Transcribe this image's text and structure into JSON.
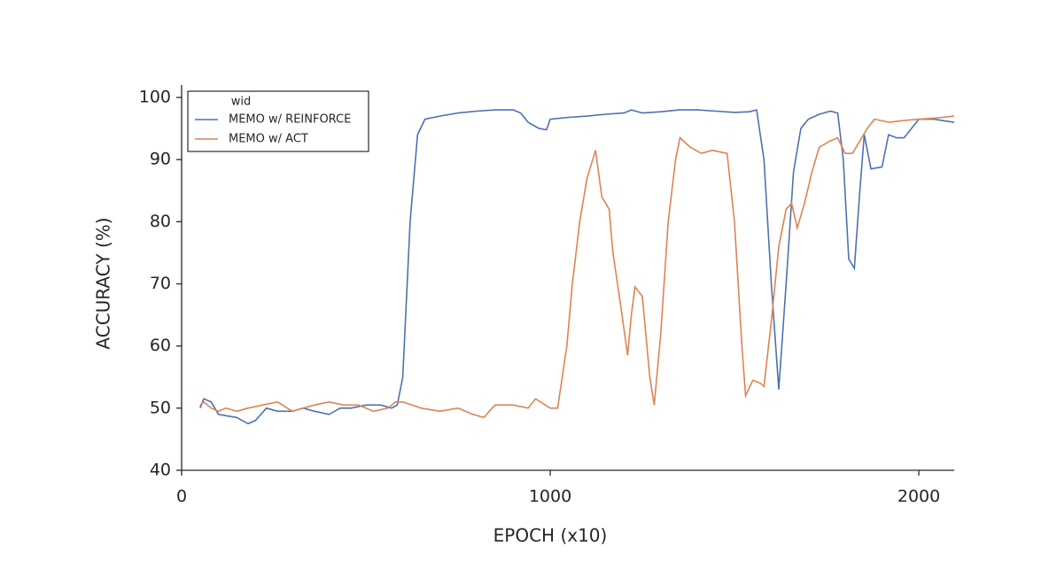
{
  "chart_data": {
    "type": "line",
    "xlabel": "EPOCH (x10)",
    "ylabel": "ACCURACY (%)",
    "xlim": [
      0,
      2096
    ],
    "ylim": [
      40,
      102
    ],
    "xticks": [
      0,
      1000,
      2000
    ],
    "yticks": [
      40,
      50,
      60,
      70,
      80,
      90,
      100
    ],
    "legend_title": "wid",
    "legend": "upper left",
    "series": [
      {
        "name": "MEMO w/ REINFORCE",
        "color": "#4c72b0",
        "x": [
          50,
          60,
          80,
          100,
          150,
          180,
          200,
          230,
          260,
          300,
          330,
          360,
          400,
          430,
          460,
          500,
          540,
          570,
          585,
          600,
          620,
          640,
          660,
          700,
          750,
          800,
          850,
          900,
          920,
          940,
          970,
          990,
          1000,
          1050,
          1100,
          1150,
          1200,
          1220,
          1250,
          1300,
          1350,
          1400,
          1450,
          1500,
          1540,
          1560,
          1580,
          1600,
          1620,
          1640,
          1660,
          1680,
          1700,
          1730,
          1760,
          1780,
          1795,
          1810,
          1825,
          1840,
          1852,
          1870,
          1900,
          1918,
          1940,
          1960,
          1980,
          2000,
          2040,
          2096
        ],
        "values": [
          50,
          51.5,
          51,
          49,
          48.5,
          47.5,
          48,
          50,
          49.5,
          49.5,
          50,
          49.5,
          49,
          50,
          50,
          50.5,
          50.5,
          50,
          50.5,
          55,
          80,
          94,
          96.5,
          97,
          97.5,
          97.8,
          98,
          98,
          97.5,
          96,
          95,
          94.8,
          96.5,
          96.8,
          97,
          97.3,
          97.5,
          98,
          97.5,
          97.7,
          98,
          98,
          97.8,
          97.6,
          97.7,
          98,
          90,
          70,
          53,
          70,
          88,
          95,
          96.5,
          97.3,
          97.8,
          97.5,
          90,
          74,
          72.5,
          85,
          94,
          88.5,
          88.8,
          94,
          93.5,
          93.5,
          95,
          96.5,
          96.5,
          96
        ]
      },
      {
        "name": "MEMO w/ ACT",
        "color": "#dd8452",
        "x": [
          50,
          60,
          80,
          100,
          120,
          150,
          180,
          220,
          260,
          300,
          330,
          360,
          400,
          440,
          480,
          520,
          560,
          580,
          600,
          650,
          700,
          750,
          790,
          820,
          850,
          900,
          940,
          960,
          1000,
          1020,
          1045,
          1060,
          1080,
          1100,
          1123,
          1140,
          1160,
          1170,
          1190,
          1210,
          1220,
          1230,
          1250,
          1270,
          1282,
          1300,
          1320,
          1340,
          1352,
          1380,
          1410,
          1440,
          1480,
          1500,
          1520,
          1530,
          1550,
          1570,
          1580,
          1600,
          1620,
          1640,
          1655,
          1670,
          1690,
          1710,
          1730,
          1760,
          1780,
          1800,
          1820,
          1840,
          1860,
          1880,
          1920,
          1960,
          2000,
          2050,
          2096
        ],
        "values": [
          50.5,
          51,
          50,
          49.5,
          50,
          49.5,
          50,
          50.5,
          51,
          49.5,
          50,
          50.5,
          51,
          50.5,
          50.5,
          49.5,
          50,
          51,
          51,
          50,
          49.5,
          50,
          49,
          48.5,
          50.5,
          50.5,
          50,
          51.5,
          50,
          50,
          60,
          70,
          80,
          87,
          91.5,
          84,
          82,
          75,
          67,
          58.5,
          65,
          69.5,
          68,
          55,
          50.5,
          62,
          80,
          90,
          93.5,
          92,
          91,
          91.5,
          91,
          80,
          60,
          52,
          54.5,
          54,
          53.5,
          64,
          76,
          82,
          83,
          79,
          83,
          88,
          92,
          93,
          93.5,
          91,
          91,
          93,
          95,
          96.5,
          96,
          96.3,
          96.5,
          96.7,
          97
        ]
      }
    ]
  }
}
